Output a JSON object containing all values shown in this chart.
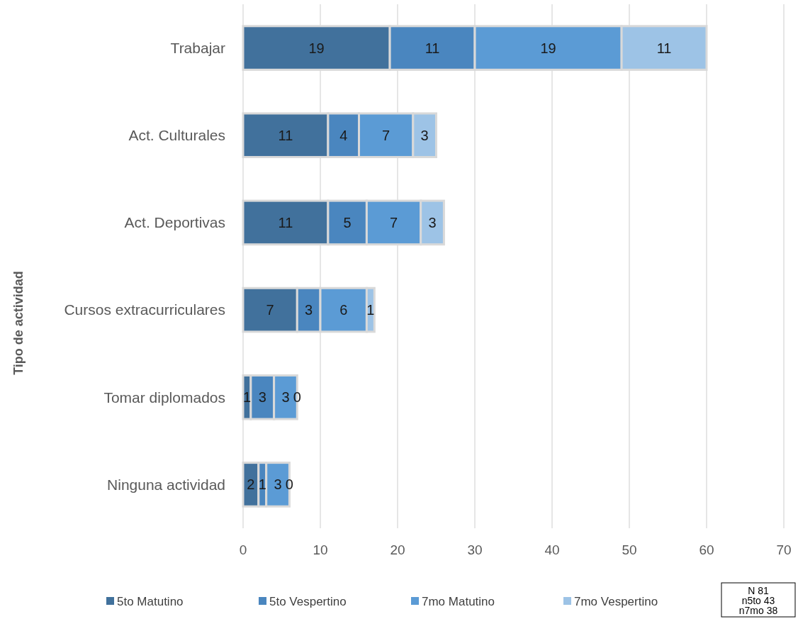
{
  "chart_data": {
    "type": "bar",
    "orientation": "horizontal",
    "stacked": true,
    "data_labels": true,
    "grid": "x",
    "legend": "bottom",
    "ylabel": "Tipo de actividad",
    "categories": [
      "Trabajar",
      "Act. Culturales",
      "Act. Deportivas",
      "Cursos extracurriculares",
      "Tomar diplomados",
      "Ninguna actividad"
    ],
    "series": [
      {
        "name": "5to Matutino",
        "color": "#41719c",
        "values": [
          19,
          11,
          11,
          7,
          1,
          2
        ]
      },
      {
        "name": "5to Vespertino",
        "color": "#4a86bf",
        "values": [
          11,
          4,
          5,
          3,
          3,
          1
        ]
      },
      {
        "name": "7mo Matutino",
        "color": "#5b9bd5",
        "values": [
          19,
          7,
          7,
          6,
          3,
          3
        ]
      },
      {
        "name": "7mo Vespertino",
        "color": "#9dc3e6",
        "values": [
          11,
          3,
          3,
          1,
          0,
          0
        ]
      }
    ],
    "xlim": [
      0,
      70
    ],
    "xticks": [
      0,
      10,
      20,
      30,
      40,
      50,
      60,
      70
    ],
    "annotations": [
      "N 81",
      "n5to 43",
      "n7mo 38"
    ]
  }
}
